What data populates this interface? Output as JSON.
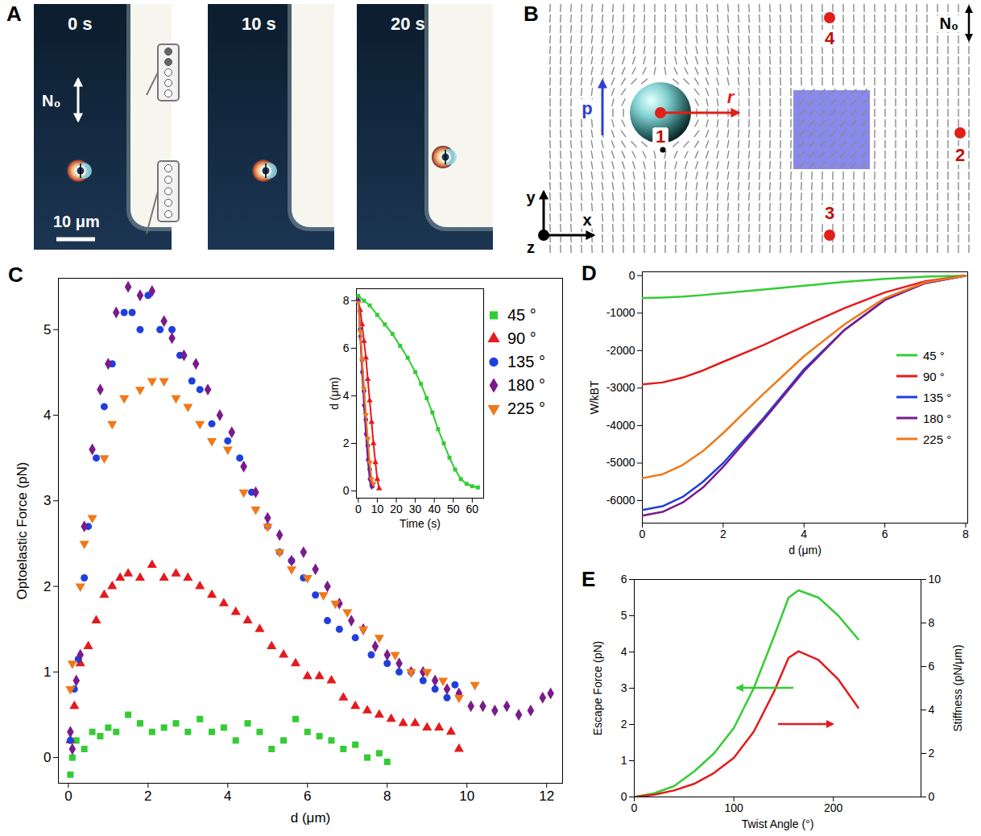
{
  "chart_data": [
    {
      "type": "micrograph",
      "panel_label": "A",
      "frames": [
        "0 s",
        "10 s",
        "20 s"
      ],
      "director_label": "N₀",
      "scale_bar_label": "10 μm"
    },
    {
      "type": "diagram",
      "panel_label": "B",
      "director_label": "N₀",
      "point_labels": [
        "1",
        "2",
        "3",
        "4"
      ],
      "vector_labels": [
        "p",
        "r"
      ],
      "axis_labels": [
        "x",
        "y",
        "z"
      ]
    },
    {
      "type": "scatter",
      "panel_label": "C",
      "xlabel": "d (μm)",
      "ylabel": "Optoelastic Force (pN)",
      "xlim": [
        -0.25,
        12.4
      ],
      "xticks": [
        0,
        2,
        4,
        6,
        8,
        10,
        12
      ],
      "ylim": [
        -0.3,
        5.6
      ],
      "yticks": [
        0,
        1,
        2,
        3,
        4,
        5
      ],
      "legend": "top-right",
      "series": [
        {
          "name": "45 °",
          "color": "#33cc33",
          "marker": "square",
          "x": [
            0.05,
            0.1,
            0.2,
            0.4,
            0.6,
            0.8,
            1.0,
            1.2,
            1.5,
            1.8,
            2.1,
            2.4,
            2.7,
            3.0,
            3.3,
            3.6,
            3.9,
            4.2,
            4.5,
            4.8,
            5.1,
            5.4,
            5.7,
            6.0,
            6.3,
            6.6,
            6.9,
            7.2,
            7.5,
            7.8,
            8.0
          ],
          "values": [
            -0.2,
            0.0,
            0.2,
            0.1,
            0.3,
            0.25,
            0.35,
            0.3,
            0.5,
            0.4,
            0.3,
            0.35,
            0.4,
            0.3,
            0.45,
            0.3,
            0.35,
            0.2,
            0.4,
            0.3,
            0.1,
            0.2,
            0.45,
            0.3,
            0.25,
            0.2,
            0.1,
            0.15,
            0.0,
            0.05,
            -0.05
          ]
        },
        {
          "name": "90 °",
          "color": "#e41a1c",
          "marker": "triangle",
          "x": [
            0.05,
            0.15,
            0.3,
            0.5,
            0.7,
            0.9,
            1.1,
            1.3,
            1.5,
            1.8,
            2.1,
            2.4,
            2.7,
            3.0,
            3.3,
            3.6,
            3.9,
            4.2,
            4.5,
            4.8,
            5.1,
            5.4,
            5.7,
            6.0,
            6.3,
            6.6,
            6.9,
            7.2,
            7.5,
            7.8,
            8.1,
            8.4,
            8.7,
            9.0,
            9.3,
            9.6,
            9.8
          ],
          "values": [
            0.2,
            0.6,
            1.1,
            1.3,
            1.6,
            1.9,
            2.0,
            2.1,
            2.15,
            2.1,
            2.25,
            2.1,
            2.15,
            2.1,
            2.0,
            1.9,
            1.8,
            1.7,
            1.6,
            1.5,
            1.3,
            1.2,
            1.1,
            0.95,
            0.95,
            0.9,
            0.7,
            0.6,
            0.55,
            0.5,
            0.45,
            0.4,
            0.4,
            0.35,
            0.35,
            0.3,
            0.1
          ]
        },
        {
          "name": "135 °",
          "color": "#1f3fdd",
          "marker": "circle",
          "x": [
            0.05,
            0.15,
            0.25,
            0.4,
            0.5,
            0.7,
            0.9,
            1.1,
            1.4,
            1.6,
            1.8,
            2.0,
            2.3,
            2.6,
            2.8,
            3.1,
            3.3,
            3.6,
            4.0,
            4.3,
            4.6,
            5.0,
            5.3,
            5.6,
            5.9,
            6.2,
            6.5,
            6.8,
            7.2,
            7.6,
            8.0,
            8.3,
            8.6,
            8.9,
            9.2,
            9.5,
            9.7
          ],
          "values": [
            0.2,
            0.8,
            1.15,
            2.1,
            2.7,
            3.5,
            4.1,
            4.6,
            5.2,
            5.2,
            5.0,
            5.4,
            5.0,
            5.0,
            4.7,
            4.4,
            4.3,
            3.9,
            3.7,
            3.5,
            3.1,
            2.7,
            2.4,
            2.3,
            2.1,
            1.9,
            1.6,
            1.5,
            1.4,
            1.2,
            1.1,
            1.0,
            1.0,
            0.9,
            0.8,
            0.7,
            0.85
          ]
        },
        {
          "name": "180 °",
          "color": "#7a1a8c",
          "marker": "diamond",
          "x": [
            0.05,
            0.1,
            0.2,
            0.3,
            0.4,
            0.6,
            0.8,
            1.0,
            1.2,
            1.5,
            1.8,
            2.1,
            2.4,
            2.6,
            2.9,
            3.2,
            3.5,
            3.8,
            4.1,
            4.4,
            4.7,
            5.0,
            5.3,
            5.6,
            5.9,
            6.2,
            6.5,
            6.8,
            7.1,
            7.4,
            7.7,
            8.0,
            8.3,
            8.6,
            8.9,
            9.2,
            9.5,
            9.8,
            10.1,
            10.4,
            10.7,
            11.0,
            11.3,
            11.6,
            11.9,
            12.1
          ],
          "values": [
            0.3,
            0.1,
            0.9,
            1.2,
            2.7,
            3.6,
            4.3,
            4.6,
            5.2,
            5.5,
            5.4,
            5.45,
            5.1,
            4.9,
            4.7,
            4.6,
            4.3,
            4.0,
            3.8,
            3.4,
            3.1,
            2.8,
            2.6,
            2.3,
            2.4,
            2.2,
            2.0,
            1.8,
            1.6,
            1.5,
            1.3,
            1.2,
            1.1,
            1.0,
            1.0,
            0.9,
            0.8,
            0.75,
            0.6,
            0.6,
            0.55,
            0.6,
            0.5,
            0.55,
            0.7,
            0.75
          ]
        },
        {
          "name": "225 °",
          "color": "#f07818",
          "marker": "triangle-down",
          "x": [
            0.05,
            0.1,
            0.3,
            0.4,
            0.6,
            0.9,
            1.1,
            1.4,
            1.8,
            2.1,
            2.4,
            2.7,
            3.0,
            3.3,
            3.6,
            4.0,
            4.4,
            4.7,
            5.0,
            5.3,
            5.6,
            6.0,
            6.4,
            6.7,
            7.0,
            7.4,
            7.8,
            8.2,
            8.6,
            9.0,
            9.4,
            9.8,
            10.2
          ],
          "values": [
            0.8,
            1.1,
            2.0,
            2.5,
            2.8,
            3.5,
            3.9,
            4.2,
            4.3,
            4.4,
            4.4,
            4.2,
            4.1,
            3.9,
            3.7,
            3.6,
            3.1,
            2.9,
            2.7,
            2.4,
            2.2,
            2.1,
            1.9,
            1.8,
            1.7,
            1.5,
            1.4,
            1.2,
            1.0,
            1.0,
            0.9,
            0.7,
            0.85
          ]
        }
      ]
    },
    {
      "type": "line",
      "xlabel": "Time (s)",
      "ylabel": "d (μm)",
      "xlim": [
        -1,
        66
      ],
      "xticks": [
        0,
        10,
        20,
        30,
        40,
        50,
        60
      ],
      "ylim": [
        -0.3,
        8.5
      ],
      "yticks": [
        0,
        2,
        4,
        6,
        8
      ],
      "series": [
        {
          "color": "#33cc33",
          "marker": "square",
          "x": [
            0,
            3,
            6,
            10,
            14,
            18,
            22,
            26,
            30,
            33,
            36,
            39,
            42,
            45,
            48,
            51,
            54,
            57,
            60,
            63
          ],
          "values": [
            8.2,
            8.0,
            7.8,
            7.4,
            7.0,
            6.6,
            6.1,
            5.6,
            5.0,
            4.5,
            3.9,
            3.3,
            2.6,
            2.0,
            1.4,
            0.9,
            0.5,
            0.3,
            0.2,
            0.15
          ]
        },
        {
          "color": "#e41a1c",
          "marker": "triangle",
          "x": [
            0,
            1,
            2,
            3,
            4,
            5,
            6,
            7,
            8,
            9,
            10,
            11
          ],
          "values": [
            8.0,
            7.6,
            7.0,
            6.3,
            5.6,
            4.7,
            3.8,
            2.9,
            2.0,
            1.2,
            0.5,
            0.1
          ]
        },
        {
          "color": "#1f3fdd",
          "marker": "circle",
          "x": [
            0,
            1,
            2,
            3,
            4,
            5,
            6,
            7,
            7.5
          ],
          "values": [
            8.0,
            6.8,
            5.5,
            4.2,
            3.0,
            1.9,
            0.9,
            0.3,
            0.2
          ]
        },
        {
          "color": "#7a1a8c",
          "marker": "diamond",
          "x": [
            0,
            1,
            2,
            3,
            4,
            5,
            6,
            7
          ],
          "values": [
            8.0,
            6.5,
            5.0,
            3.6,
            2.4,
            1.3,
            0.5,
            0.2
          ]
        },
        {
          "color": "#f07818",
          "marker": "triangle-down",
          "x": [
            0,
            1,
            2,
            3,
            4,
            5,
            6,
            7,
            8
          ],
          "values": [
            7.9,
            6.7,
            5.5,
            4.3,
            3.2,
            2.2,
            1.2,
            0.5,
            0.3
          ]
        }
      ]
    },
    {
      "type": "line",
      "panel_label": "D",
      "xlabel": "d (μm)",
      "ylabel": "W/kBT",
      "xlim": [
        0,
        8.05
      ],
      "xticks": [
        0,
        2,
        4,
        6,
        8
      ],
      "ylim": [
        -6600,
        100
      ],
      "yticks": [
        -6000,
        -5000,
        -4000,
        -3000,
        -2000,
        -1000,
        0
      ],
      "legend": "right",
      "x": [
        0,
        0.5,
        1,
        1.5,
        2,
        3,
        4,
        5,
        6,
        7,
        8
      ],
      "series": [
        {
          "name": "45 °",
          "color": "#33cc33",
          "values": [
            -600,
            -585,
            -560,
            -520,
            -470,
            -370,
            -270,
            -170,
            -90,
            -30,
            0
          ]
        },
        {
          "name": "90 °",
          "color": "#e41a1c",
          "values": [
            -2900,
            -2850,
            -2720,
            -2530,
            -2300,
            -1850,
            -1350,
            -870,
            -450,
            -150,
            0
          ]
        },
        {
          "name": "135 °",
          "color": "#1f3fdd",
          "values": [
            -6250,
            -6150,
            -5900,
            -5500,
            -5000,
            -3800,
            -2500,
            -1450,
            -650,
            -200,
            0
          ]
        },
        {
          "name": "180 °",
          "color": "#7a1a8c",
          "values": [
            -6400,
            -6300,
            -6050,
            -5650,
            -5100,
            -3850,
            -2550,
            -1450,
            -650,
            -200,
            0
          ]
        },
        {
          "name": "225 °",
          "color": "#f07818",
          "values": [
            -5400,
            -5300,
            -5050,
            -4680,
            -4200,
            -3150,
            -2150,
            -1300,
            -600,
            -180,
            0
          ]
        }
      ]
    },
    {
      "type": "line",
      "panel_label": "E",
      "xlabel": "Twist Angle (°)",
      "ylabel": "Escape Force (pN)",
      "y2label": "Stiffness (pN/μm)",
      "xlim": [
        0,
        288
      ],
      "xticks": [
        0,
        100,
        200
      ],
      "ylim": [
        0,
        6
      ],
      "yticks": [
        0,
        1,
        2,
        3,
        4,
        5,
        6
      ],
      "y2lim": [
        0,
        10
      ],
      "y2ticks": [
        0,
        2,
        4,
        6,
        8,
        10
      ],
      "series": [
        {
          "color": "#33cc33",
          "x": [
            0,
            20,
            40,
            60,
            80,
            100,
            120,
            140,
            155,
            165,
            185,
            205,
            225
          ],
          "values": [
            0,
            0.1,
            0.3,
            0.7,
            1.2,
            1.9,
            3.0,
            4.4,
            5.5,
            5.7,
            5.5,
            5.0,
            4.35
          ]
        },
        {
          "color": "#e41a1c",
          "axis": "y2",
          "x": [
            0,
            20,
            40,
            60,
            80,
            100,
            120,
            140,
            155,
            165,
            185,
            205,
            225
          ],
          "values": [
            0,
            0.1,
            0.3,
            0.6,
            1.1,
            1.8,
            3.0,
            4.8,
            6.4,
            6.7,
            6.3,
            5.4,
            4.1
          ]
        }
      ]
    }
  ]
}
